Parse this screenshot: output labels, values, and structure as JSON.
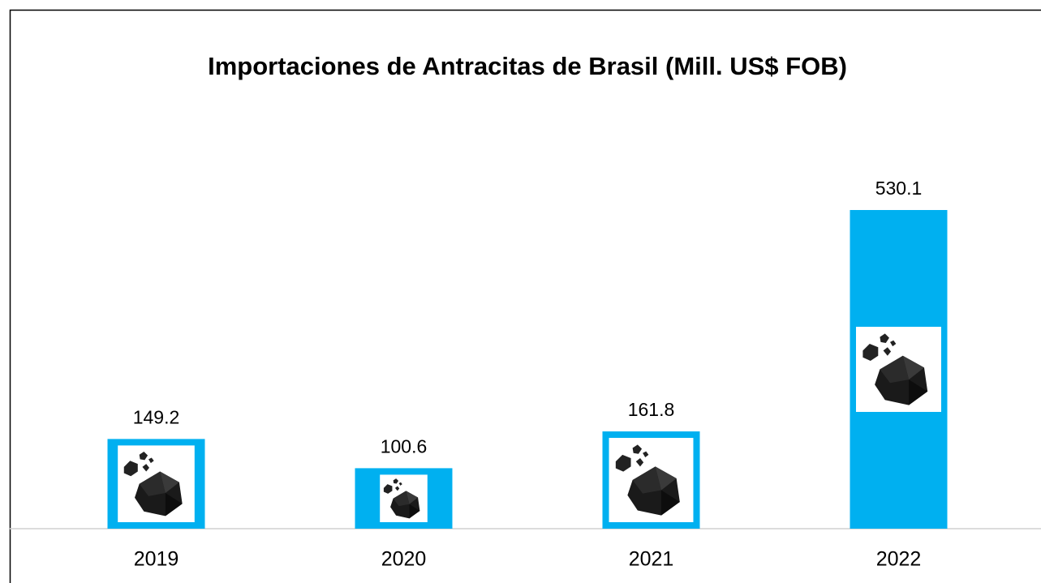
{
  "chart_data": {
    "type": "bar",
    "title": "Importaciones de Antracitas de Brasil (Mill. US$ FOB)",
    "categories": [
      "2019",
      "2020",
      "2021",
      "2022"
    ],
    "values": [
      149.2,
      100.6,
      161.8,
      530.1
    ],
    "color": "#00b0f0"
  }
}
